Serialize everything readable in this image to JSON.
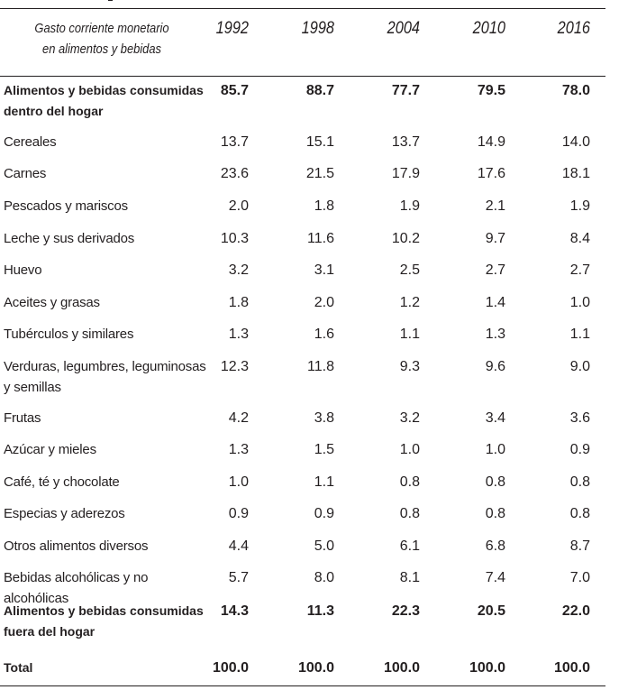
{
  "table": {
    "header": {
      "label_line1": "Gasto corriente monetario",
      "label_line2": "en alimentos y bebidas",
      "years": [
        "1992",
        "1998",
        "2004",
        "2010",
        "2016"
      ]
    },
    "rows": [
      {
        "label_line1": "Alimentos y bebidas consumidas",
        "label_line2": "dentro del hogar",
        "bold": true,
        "values": [
          "85.7",
          "88.7",
          "77.7",
          "79.5",
          "78.0"
        ]
      },
      {
        "label_line1": "Cereales",
        "values": [
          "13.7",
          "15.1",
          "13.7",
          "14.9",
          "14.0"
        ]
      },
      {
        "label_line1": "Carnes",
        "values": [
          "23.6",
          "21.5",
          "17.9",
          "17.6",
          "18.1"
        ]
      },
      {
        "label_line1": "Pescados y mariscos",
        "values": [
          "2.0",
          "1.8",
          "1.9",
          "2.1",
          "1.9"
        ]
      },
      {
        "label_line1": "Leche y sus derivados",
        "values": [
          "10.3",
          "11.6",
          "10.2",
          "9.7",
          "8.4"
        ]
      },
      {
        "label_line1": "Huevo",
        "values": [
          "3.2",
          "3.1",
          "2.5",
          "2.7",
          "2.7"
        ]
      },
      {
        "label_line1": "Aceites y grasas",
        "values": [
          "1.8",
          "2.0",
          "1.2",
          "1.4",
          "1.0"
        ]
      },
      {
        "label_line1": "Tubérculos y similares",
        "values": [
          "1.3",
          "1.6",
          "1.1",
          "1.3",
          "1.1"
        ]
      },
      {
        "label_line1": "Verduras, legumbres, leguminosas",
        "label_line2": "y semillas",
        "values": [
          "12.3",
          "11.8",
          "9.3",
          "9.6",
          "9.0"
        ]
      },
      {
        "label_line1": "Frutas",
        "values": [
          "4.2",
          "3.8",
          "3.2",
          "3.4",
          "3.6"
        ]
      },
      {
        "label_line1": "Azúcar y mieles",
        "values": [
          "1.3",
          "1.5",
          "1.0",
          "1.0",
          "0.9"
        ]
      },
      {
        "label_line1": "Café, té y chocolate",
        "values": [
          "1.0",
          "1.1",
          "0.8",
          "0.8",
          "0.8"
        ]
      },
      {
        "label_line1": "Especias y aderezos",
        "values": [
          "0.9",
          "0.9",
          "0.8",
          "0.8",
          "0.8"
        ]
      },
      {
        "label_line1": "Otros alimentos diversos",
        "values": [
          "4.4",
          "5.0",
          "6.1",
          "6.8",
          "8.7"
        ]
      },
      {
        "label_line1": "Bebidas alcohólicas y no alcohólicas",
        "values": [
          "5.7",
          "8.0",
          "8.1",
          "7.4",
          "7.0"
        ]
      },
      {
        "label_line1": "Alimentos y bebidas consumidas",
        "label_line2": "fuera del hogar",
        "bold": true,
        "values": [
          "14.3",
          "11.3",
          "22.3",
          "20.5",
          "22.0"
        ]
      },
      {
        "label_line1": "Total",
        "bold": true,
        "values": [
          "100.0",
          "100.0",
          "100.0",
          "100.0",
          "100.0"
        ]
      }
    ]
  }
}
